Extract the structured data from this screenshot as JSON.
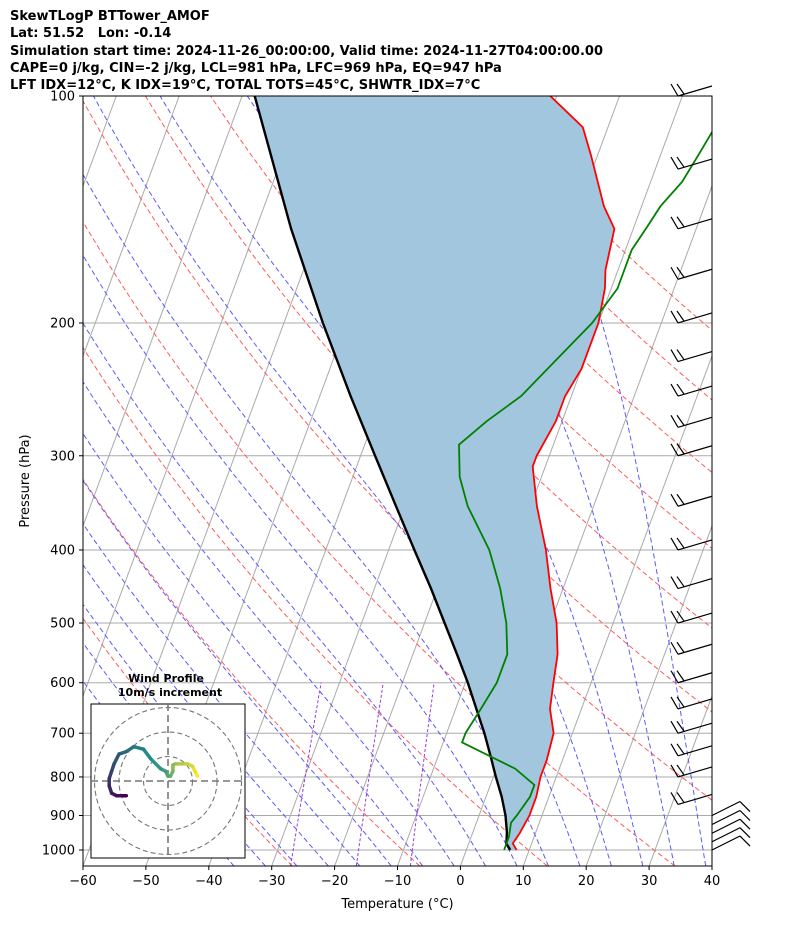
{
  "header": {
    "line1": "SkewTLogP BTTower_AMOF",
    "line2": "Lat: 51.52   Lon: -0.14",
    "line3": "Simulation start time: 2024-11-26_00:00:00, Valid time: 2024-11-27T04:00:00.00",
    "line4": "CAPE=0 j/kg, CIN=-2 j/kg, LCL=981 hPa, LFC=969 hPa, EQ=947 hPa",
    "line5": "LFT IDX=12°C, K IDX=19°C, TOTAL TOTS=45°C, SHWTR_IDX=7°C"
  },
  "colors": {
    "temperature": "#ff0000",
    "dewpoint": "#008000",
    "parcel": "#000000",
    "cape_fill": "#a3c6df",
    "dry_adiabat": "#ff5a5a",
    "moist_adiabat": "#5a5aff",
    "isotherm": "#aaaaaa",
    "mixing_line": "#9b3bd6"
  },
  "chart_data": {
    "type": "line",
    "subtype": "skewT-logP",
    "xlabel": "Temperature ($^\\circ$C)",
    "ylabel": "Pressure (hPa)",
    "xlim": [
      -60,
      40
    ],
    "ylim": [
      1050,
      100
    ],
    "yscale": "log",
    "xticks": [
      "−60",
      "−50",
      "−40",
      "−30",
      "−20",
      "−10",
      "0",
      "10",
      "20",
      "30",
      "40"
    ],
    "yticks": [
      "100",
      "200",
      "300",
      "400",
      "500",
      "600",
      "700",
      "800",
      "900",
      "1000"
    ],
    "xtick_values": [
      -60,
      -50,
      -40,
      -30,
      -20,
      -10,
      0,
      10,
      20,
      30,
      40
    ],
    "ytick_values": [
      100,
      200,
      300,
      400,
      500,
      600,
      700,
      800,
      900,
      1000
    ],
    "grid": true,
    "series": [
      {
        "key": "temperature",
        "points": [
          [
            1000,
            8
          ],
          [
            980,
            7
          ],
          [
            950,
            7.5
          ],
          [
            900,
            8
          ],
          [
            850,
            8
          ],
          [
            800,
            7.5
          ],
          [
            760,
            7.5
          ],
          [
            700,
            7
          ],
          [
            650,
            5
          ],
          [
            600,
            4
          ],
          [
            550,
            3
          ],
          [
            500,
            1
          ],
          [
            450,
            -2
          ],
          [
            400,
            -5
          ],
          [
            350,
            -9
          ],
          [
            310,
            -12
          ],
          [
            300,
            -12
          ],
          [
            270,
            -11
          ],
          [
            250,
            -11
          ],
          [
            230,
            -10
          ],
          [
            200,
            -10
          ],
          [
            180,
            -11
          ],
          [
            170,
            -12
          ],
          [
            150,
            -13
          ],
          [
            140,
            -16
          ],
          [
            120,
            -21
          ],
          [
            110,
            -24
          ],
          [
            100,
            -31
          ]
        ]
      },
      {
        "key": "dewpoint",
        "points": [
          [
            1000,
            6
          ],
          [
            960,
            6
          ],
          [
            920,
            5.5
          ],
          [
            900,
            6
          ],
          [
            850,
            7
          ],
          [
            820,
            7
          ],
          [
            780,
            3
          ],
          [
            720,
            -7
          ],
          [
            700,
            -7
          ],
          [
            650,
            -6
          ],
          [
            600,
            -5
          ],
          [
            550,
            -5
          ],
          [
            500,
            -7
          ],
          [
            450,
            -10
          ],
          [
            400,
            -14
          ],
          [
            350,
            -20
          ],
          [
            320,
            -23
          ],
          [
            290,
            -25
          ],
          [
            270,
            -22
          ],
          [
            250,
            -18
          ],
          [
            220,
            -14
          ],
          [
            200,
            -11
          ],
          [
            180,
            -9
          ],
          [
            160,
            -9
          ],
          [
            150,
            -8
          ],
          [
            140,
            -7
          ],
          [
            130,
            -5
          ],
          [
            120,
            -4
          ],
          [
            110,
            -3
          ],
          [
            100,
            -4
          ]
        ]
      },
      {
        "key": "parcel",
        "points": [
          [
            1000,
            7
          ],
          [
            981,
            6
          ],
          [
            969,
            5.8
          ],
          [
            947,
            5.4
          ],
          [
            900,
            4.2
          ],
          [
            850,
            2.5
          ],
          [
            800,
            0.4
          ],
          [
            750,
            -1.7
          ],
          [
            700,
            -4
          ],
          [
            650,
            -6.7
          ],
          [
            600,
            -9.6
          ],
          [
            550,
            -13
          ],
          [
            500,
            -16.8
          ],
          [
            450,
            -21
          ],
          [
            400,
            -25.9
          ],
          [
            350,
            -31.4
          ],
          [
            300,
            -37.7
          ],
          [
            250,
            -45.1
          ],
          [
            200,
            -53.8
          ],
          [
            150,
            -64.4
          ],
          [
            100,
            -78
          ]
        ]
      }
    ],
    "wind_barbs_pressure": [
      1000,
      975,
      950,
      925,
      900,
      870,
      800,
      750,
      700,
      650,
      600,
      550,
      500,
      450,
      400,
      350,
      300,
      275,
      250,
      225,
      200,
      175,
      150,
      125,
      100
    ],
    "hodograph": {
      "title": "Wind Profile",
      "subtitle": "10m/s increment",
      "rings": [
        10,
        20,
        30
      ],
      "points": [
        [
          12,
          2
        ],
        [
          11,
          4
        ],
        [
          10,
          6
        ],
        [
          8,
          7
        ],
        [
          6,
          7
        ],
        [
          3,
          7
        ],
        [
          2,
          6.5
        ],
        [
          2,
          4
        ],
        [
          1,
          2
        ],
        [
          0,
          2
        ],
        [
          -1,
          4
        ],
        [
          -3,
          5
        ],
        [
          -7,
          9
        ],
        [
          -10,
          13
        ],
        [
          -14,
          14
        ],
        [
          -17,
          12
        ],
        [
          -20,
          11
        ],
        [
          -22,
          7
        ],
        [
          -23,
          4
        ],
        [
          -24,
          1
        ],
        [
          -24,
          -2
        ],
        [
          -23,
          -5
        ],
        [
          -21,
          -6
        ],
        [
          -18,
          -6
        ],
        [
          -17,
          -6
        ]
      ],
      "color_start": "#fde725",
      "color_end": "#440154"
    }
  }
}
